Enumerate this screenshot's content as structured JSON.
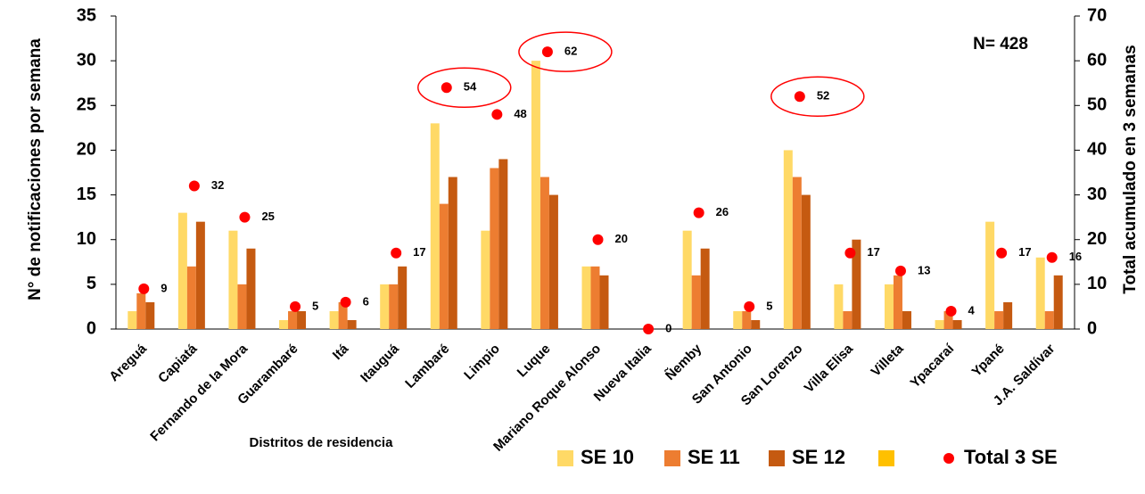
{
  "chart_data": {
    "type": "bar",
    "y_label": "N° de notificaciones por semana",
    "y2_label": "Total acumulado en 3 semanas",
    "x_label": "Distritos de residencia",
    "annotation": "N= 428",
    "categories": [
      "Areguá",
      "Capiatá",
      "Fernando de la Mora",
      "Guarambaré",
      "Itá",
      "Itauguá",
      "Lambaré",
      "Limpio",
      "Luque",
      "Mariano Roque Alonso",
      "Nueva Italia",
      "Ñemby",
      "San Antonio",
      "San Lorenzo",
      "Villa Elisa",
      "Villeta",
      "Ypacaraí",
      "Ypané",
      "J.A. Saldívar"
    ],
    "series": [
      {
        "name": "SE 10",
        "color": "#ffd966",
        "values": [
          2,
          13,
          11,
          1,
          2,
          5,
          23,
          11,
          30,
          7,
          0,
          11,
          2,
          20,
          5,
          5,
          1,
          12,
          8
        ]
      },
      {
        "name": "SE 11",
        "color": "#ed7d31",
        "values": [
          4,
          7,
          5,
          2,
          3,
          5,
          14,
          18,
          17,
          7,
          0,
          6,
          2,
          17,
          2,
          6,
          2,
          2,
          2
        ]
      },
      {
        "name": "SE 12",
        "color": "#c55a11",
        "values": [
          3,
          12,
          9,
          2,
          1,
          7,
          17,
          19,
          15,
          6,
          0,
          9,
          1,
          15,
          10,
          2,
          1,
          3,
          6
        ]
      },
      {
        "name": "Total 3 SE",
        "color": "#ff0000",
        "axis": "y2",
        "type": "scatter",
        "values": [
          9,
          32,
          25,
          5,
          6,
          17,
          54,
          48,
          62,
          20,
          0,
          26,
          5,
          52,
          17,
          13,
          4,
          17,
          16
        ]
      }
    ],
    "ylim": [
      0,
      35
    ],
    "yticks": [
      0,
      5,
      10,
      15,
      20,
      25,
      30,
      35
    ],
    "y2lim": [
      0,
      70
    ],
    "y2ticks": [
      0,
      10,
      20,
      30,
      40,
      50,
      60,
      70
    ],
    "grid": false
  }
}
